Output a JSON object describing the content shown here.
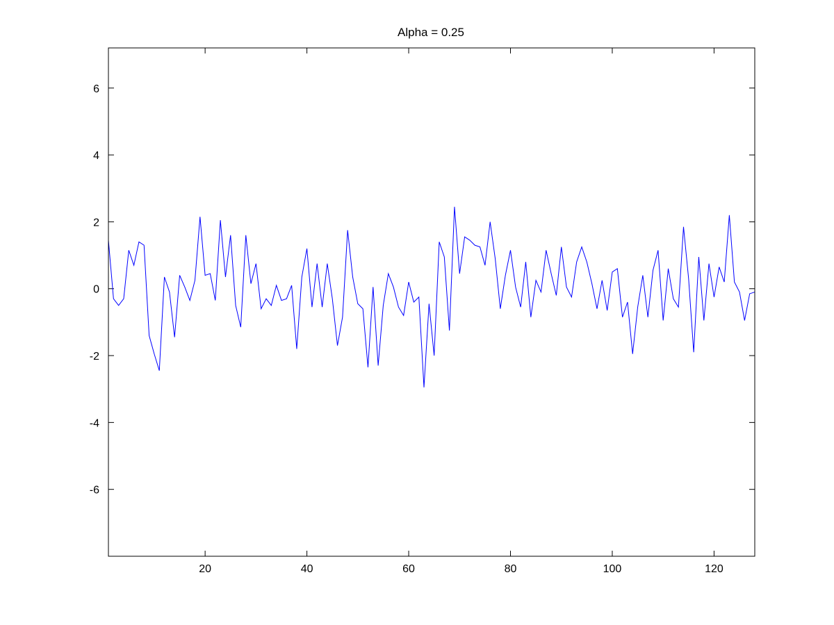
{
  "chart_data": {
    "type": "line",
    "title": "Alpha = 0.25",
    "xlabel": "",
    "ylabel": "",
    "xlim": [
      1,
      128
    ],
    "ylim": [
      -8,
      7.2
    ],
    "grid": false,
    "xticks": [
      20,
      40,
      60,
      80,
      100,
      120
    ],
    "yticks": [
      -6,
      -4,
      -2,
      0,
      2,
      4,
      6
    ],
    "series": [
      {
        "color": "#0000ff",
        "x": [
          1,
          2,
          3,
          4,
          5,
          6,
          7,
          8,
          9,
          10,
          11,
          12,
          13,
          14,
          15,
          16,
          17,
          18,
          19,
          20,
          21,
          22,
          23,
          24,
          25,
          26,
          27,
          28,
          29,
          30,
          31,
          32,
          33,
          34,
          35,
          36,
          37,
          38,
          39,
          40,
          41,
          42,
          43,
          44,
          45,
          46,
          47,
          48,
          49,
          50,
          51,
          52,
          53,
          54,
          55,
          56,
          57,
          58,
          59,
          60,
          61,
          62,
          63,
          64,
          65,
          66,
          67,
          68,
          69,
          70,
          71,
          72,
          73,
          74,
          75,
          76,
          77,
          78,
          79,
          80,
          81,
          82,
          83,
          84,
          85,
          86,
          87,
          88,
          89,
          90,
          91,
          92,
          93,
          94,
          95,
          96,
          97,
          98,
          99,
          100,
          101,
          102,
          103,
          104,
          105,
          106,
          107,
          108,
          109,
          110,
          111,
          112,
          113,
          114,
          115,
          116,
          117,
          118,
          119,
          120,
          121,
          122,
          123,
          124,
          125,
          126,
          127,
          128
        ],
        "values": [
          1.45,
          -0.3,
          -0.5,
          -0.3,
          1.15,
          0.7,
          1.4,
          1.3,
          -1.4,
          -1.95,
          -2.45,
          0.35,
          -0.1,
          -1.45,
          0.4,
          0.05,
          -0.35,
          0.25,
          2.15,
          0.4,
          0.45,
          -0.35,
          2.05,
          0.35,
          1.6,
          -0.5,
          -1.15,
          1.6,
          0.15,
          0.75,
          -0.6,
          -0.3,
          -0.5,
          0.1,
          -0.35,
          -0.3,
          0.1,
          -1.8,
          0.35,
          1.2,
          -0.55,
          0.75,
          -0.55,
          0.75,
          -0.3,
          -1.7,
          -0.85,
          1.75,
          0.35,
          -0.45,
          -0.6,
          -2.35,
          0.05,
          -2.3,
          -0.5,
          0.45,
          0.05,
          -0.55,
          -0.8,
          0.2,
          -0.4,
          -0.25,
          -2.95,
          -0.45,
          -2.0,
          1.4,
          0.95,
          -1.25,
          2.45,
          0.45,
          1.55,
          1.45,
          1.3,
          1.25,
          0.7,
          2.0,
          0.9,
          -0.6,
          0.4,
          1.15,
          0.05,
          -0.55,
          0.8,
          -0.85,
          0.25,
          -0.1,
          1.15,
          0.45,
          -0.2,
          1.25,
          0.05,
          -0.25,
          0.8,
          1.25,
          0.8,
          0.15,
          -0.6,
          0.25,
          -0.65,
          0.5,
          0.6,
          -0.85,
          -0.4,
          -1.95,
          -0.55,
          0.4,
          -0.85,
          0.55,
          1.15,
          -0.95,
          0.6,
          -0.3,
          -0.55,
          1.85,
          0.3,
          -1.9,
          0.95,
          -0.95,
          0.75,
          -0.25,
          0.65,
          0.2,
          2.2,
          0.2,
          -0.1,
          -0.95,
          -0.15,
          -0.1
        ]
      }
    ]
  }
}
